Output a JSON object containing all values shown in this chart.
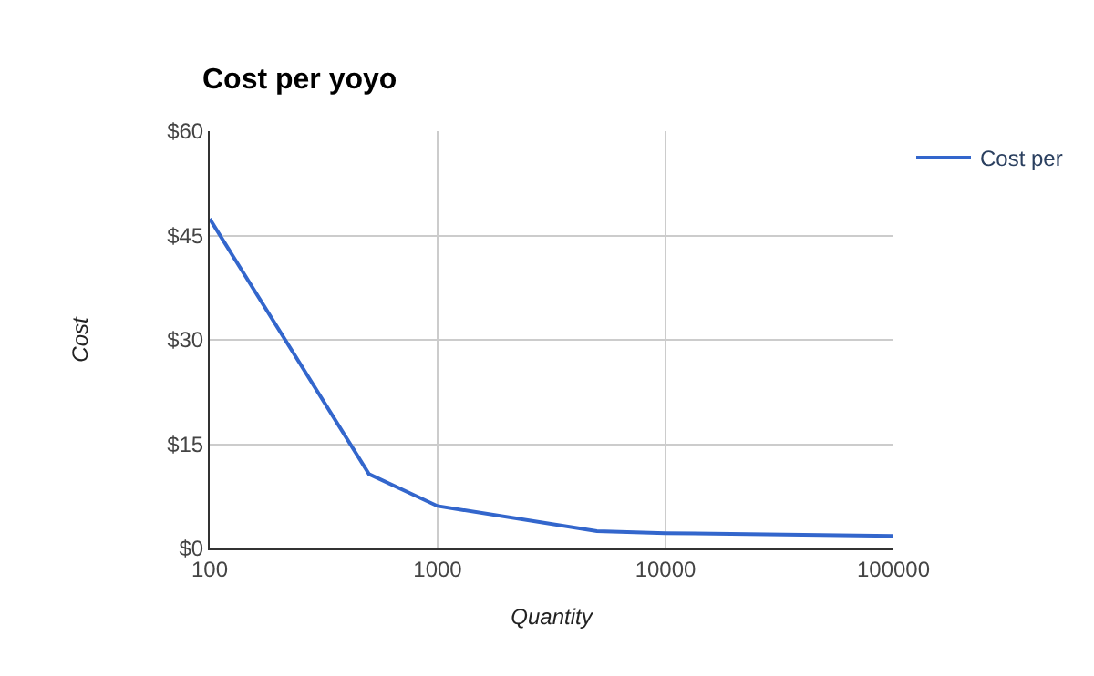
{
  "chart_data": {
    "type": "line",
    "title": "Cost per yoyo",
    "xlabel": "Quantity",
    "ylabel": "Cost",
    "log": "x",
    "x": [
      100,
      500,
      1000,
      5000,
      10000,
      100000
    ],
    "series": [
      {
        "name": "Cost per",
        "color": "#3366cc",
        "values": [
          47.4,
          10.7,
          6.1,
          2.5,
          2.2,
          1.8
        ]
      }
    ],
    "xlim": [
      100,
      100000
    ],
    "xticks": [
      100,
      1000,
      10000,
      100000
    ],
    "ylim": [
      0,
      60
    ],
    "yticks": [
      {
        "value": 0,
        "label": "$0"
      },
      {
        "value": 15,
        "label": "$15"
      },
      {
        "value": 30,
        "label": "$30"
      },
      {
        "value": 45,
        "label": "$45"
      },
      {
        "value": 60,
        "label": "$60"
      }
    ],
    "grid": true,
    "legend": "top right",
    "marker": "none",
    "line_style": "solid"
  }
}
